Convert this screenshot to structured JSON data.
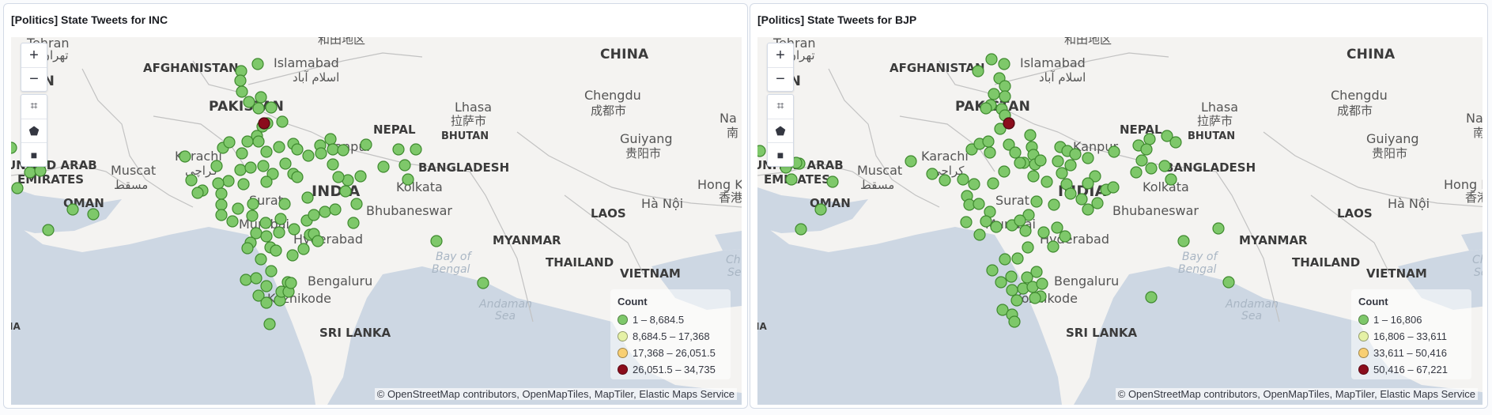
{
  "colors": {
    "low": "#7ec86a",
    "lowmid": "#e5f1a6",
    "mid": "#f8cf73",
    "high": "#8b0d1c"
  },
  "panels": [
    {
      "title": "[Politics] State Tweets for INC",
      "legend": {
        "title": "Count",
        "items": [
          "1 – 8,684.5",
          "8,684.5 – 17,368",
          "17,368 – 26,051.5",
          "26,051.5 – 34,735"
        ]
      },
      "attribution": "© OpenStreetMap contributors, OpenMapTiles, MapTiler, Elastic Maps Service"
    },
    {
      "title": "[Politics] State Tweets for BJP",
      "legend": {
        "title": "Count",
        "items": [
          "1 – 16,806",
          "16,806 – 33,611",
          "33,611 – 50,416",
          "50,416 – 67,221"
        ]
      },
      "attribution": "© OpenStreetMap contributors, OpenMapTiles, MapTiler, Elastic Maps Service"
    }
  ],
  "map_labels": {
    "tehran": "Tehran",
    "tehran_fa": "تهران",
    "iran": "RAN",
    "afghanistan": "AFGHANISTAN",
    "pakistan": "PAKISTAN",
    "islamabad": "Islamabad",
    "islamabad_ur": "اسلام آباد",
    "hetian": "和田地区",
    "china": "CHINA",
    "chengdu": "Chengdu",
    "chengdu_cjk": "成都市",
    "lhasa": "Lhasa",
    "lhasa_cjk": "拉萨市",
    "nepal": "NEPAL",
    "bhutan": "BHUTAN",
    "guiyang": "Guiyang",
    "guiyang_cjk": "贵阳市",
    "karachi": "Karachi",
    "karachi_ur": "کراچی",
    "kanpur": "Kanpur",
    "uae_1": "UNITED ARAB",
    "uae_2": "EMIRATES",
    "muscat": "Muscat",
    "muscat_ar": "مسقط",
    "oman": "OMAN",
    "bangladesh": "BANGLADESH",
    "india": "INDIA",
    "kolkata": "Kolkata",
    "surat": "Surat",
    "mumbai": "Mumbai",
    "bhubaneswar": "Bhubaneswar",
    "hyderabad": "Hyderabad",
    "bengaluru": "Bengaluru",
    "kozhikode": "Kozhikode",
    "sri_lanka": "SRI LANKA",
    "bay_1": "Bay of",
    "bay_2": "Bengal",
    "andaman_1": "Andaman",
    "andaman_2": "Sea",
    "myanmar": "MYANMAR",
    "thailand": "THAILAND",
    "laos": "LAOS",
    "vietnam": "VIETNAM",
    "hanoi": "Hà Nội",
    "hongkong": "Hong K",
    "hongkong_cjk": "香港",
    "na": "Na",
    "edge_cjk": "南",
    "ch": "Ch",
    "sea_edge": "Se",
    "ia": "IA"
  },
  "controls": {
    "zoom_in": "+",
    "zoom_out": "−",
    "crop": "⌗",
    "polygon": "⬟",
    "square": "■"
  }
}
